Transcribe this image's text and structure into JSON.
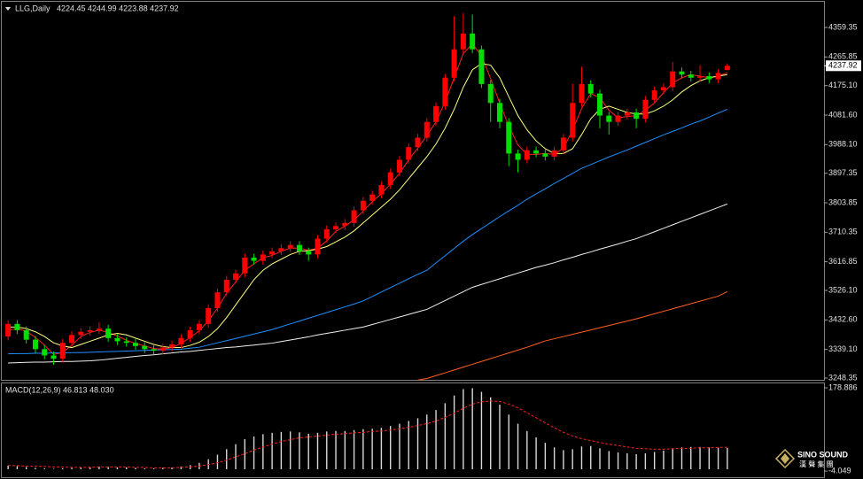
{
  "chart_data": [
    {
      "type": "candlestick",
      "title": "LLG,Daily",
      "header_values": "4224.45 4244.99 4223.88 4237.92",
      "current_price": 4237.92,
      "up_color": "#ff0000",
      "down_color": "#00e000",
      "ylim": [
        3239.93,
        4440.7
      ],
      "yticks": [
        4359.35,
        4265.85,
        {
          "value": 4175.1,
          "label": "4175.10"
        },
        {
          "value": 4081.6,
          "label": "4081.60"
        },
        {
          "value": 3988.1,
          "label": "3988.10"
        },
        3897.35,
        3803.85,
        3710.35,
        3616.85,
        {
          "value": 3526.1,
          "label": "3526.10"
        },
        {
          "value": 3432.6,
          "label": "3432.60"
        },
        {
          "value": 3339.1,
          "label": "3339.10"
        },
        3248.35
      ],
      "open": [
        3380,
        3420,
        3400,
        3370,
        3340,
        3320,
        3310,
        3360,
        3385,
        3395,
        3400,
        3405,
        3375,
        3365,
        3360,
        3350,
        3340,
        3335,
        3345,
        3355,
        3375,
        3400,
        3420,
        3470,
        3520,
        3560,
        3580,
        3630,
        3620,
        3640,
        3650,
        3660,
        3670,
        3650,
        3640,
        3690,
        3720,
        3730,
        3740,
        3780,
        3810,
        3830,
        3860,
        3900,
        3940,
        3980,
        4010,
        4060,
        4110,
        4200,
        4290,
        4340,
        4290,
        4180,
        4120,
        4060,
        3960,
        3940,
        3970,
        3960,
        3950,
        3970,
        4010,
        4120,
        4180,
        4150,
        4080,
        4060,
        4080,
        4090,
        4070,
        4130,
        4160,
        4170,
        4220,
        4210,
        4200,
        4205,
        4195,
        4224.45
      ],
      "high": [
        3432,
        3432,
        3412,
        3382,
        3352,
        3332,
        3372,
        3397,
        3407,
        3412,
        3425,
        3417,
        3387,
        3377,
        3372,
        3362,
        3352,
        3357,
        3367,
        3387,
        3412,
        3432,
        3482,
        3532,
        3572,
        3592,
        3642,
        3642,
        3652,
        3662,
        3672,
        3682,
        3682,
        3662,
        3702,
        3732,
        3742,
        3752,
        3792,
        3822,
        3842,
        3872,
        3912,
        3952,
        3992,
        4022,
        4072,
        4122,
        4212,
        4395,
        4405,
        4400,
        4302,
        4192,
        4132,
        4072,
        3972,
        3982,
        3982,
        3972,
        3982,
        4022,
        4180,
        4235,
        4192,
        4162,
        4092,
        4092,
        4102,
        4102,
        4142,
        4172,
        4182,
        4250,
        4232,
        4222,
        4240,
        4217,
        4227,
        4244.99
      ],
      "low": [
        3368,
        3388,
        3358,
        3328,
        3308,
        3290,
        3298,
        3348,
        3373,
        3383,
        3388,
        3363,
        3353,
        3348,
        3338,
        3328,
        3323,
        3323,
        3333,
        3343,
        3363,
        3388,
        3408,
        3458,
        3508,
        3548,
        3568,
        3608,
        3608,
        3628,
        3638,
        3648,
        3638,
        3620,
        3628,
        3678,
        3708,
        3718,
        3728,
        3768,
        3798,
        3818,
        3848,
        3888,
        3928,
        3968,
        3998,
        4048,
        4098,
        4188,
        4278,
        4278,
        4168,
        4060,
        4040,
        3920,
        3900,
        3928,
        3948,
        3938,
        3938,
        3958,
        3998,
        4108,
        4138,
        4040,
        4020,
        4048,
        4068,
        4040,
        4058,
        4118,
        4148,
        4158,
        4198,
        4188,
        4188,
        4183,
        4183,
        4223.88
      ],
      "close": [
        3420,
        3400,
        3370,
        3340,
        3320,
        3310,
        3360,
        3385,
        3395,
        3400,
        3405,
        3375,
        3365,
        3360,
        3350,
        3340,
        3335,
        3345,
        3355,
        3375,
        3400,
        3420,
        3470,
        3520,
        3560,
        3580,
        3630,
        3620,
        3640,
        3650,
        3660,
        3670,
        3650,
        3640,
        3690,
        3720,
        3730,
        3740,
        3780,
        3810,
        3830,
        3860,
        3900,
        3940,
        3980,
        4010,
        4060,
        4110,
        4200,
        4290,
        4340,
        4290,
        4180,
        4120,
        4060,
        3960,
        3940,
        3970,
        3960,
        3950,
        3970,
        4010,
        4120,
        4180,
        4150,
        4080,
        4060,
        4080,
        4090,
        4070,
        4130,
        4160,
        4170,
        4220,
        4210,
        4200,
        4205,
        4195,
        4215,
        4237.92
      ],
      "series": [
        {
          "color": "#ff2020",
          "values": [
            3400,
            3405,
            3397,
            3377,
            3353,
            3323,
            3330,
            3352,
            3380,
            3393,
            3400,
            3393,
            3382,
            3368,
            3358,
            3350,
            3342,
            3340,
            3345,
            3358,
            3377,
            3398,
            3430,
            3470,
            3517,
            3553,
            3590,
            3610,
            3630,
            3637,
            3650,
            3660,
            3660,
            3653,
            3660,
            3683,
            3713,
            3730,
            3750,
            3777,
            3807,
            3833,
            3863,
            3897,
            3940,
            3977,
            4017,
            4060,
            4123,
            4200,
            4277,
            4307,
            4270,
            4197,
            4120,
            4047,
            3987,
            3957,
            3957,
            3960,
            3957,
            3977,
            4033,
            4103,
            4150,
            4137,
            4097,
            4073,
            4077,
            4080,
            4097,
            4120,
            4153,
            4183,
            4200,
            4210,
            4205,
            4200,
            4205,
            4216
          ]
        },
        {
          "color": "#ffff80",
          "values": [
            3410,
            3410,
            3405,
            3395,
            3380,
            3360,
            3350,
            3345,
            3355,
            3365,
            3375,
            3385,
            3390,
            3385,
            3375,
            3365,
            3355,
            3348,
            3345,
            3345,
            3352,
            3362,
            3380,
            3405,
            3440,
            3480,
            3520,
            3560,
            3590,
            3610,
            3625,
            3640,
            3650,
            3652,
            3657,
            3665,
            3680,
            3695,
            3715,
            3740,
            3765,
            3790,
            3815,
            3845,
            3880,
            3915,
            3950,
            3990,
            4040,
            4100,
            4170,
            4225,
            4245,
            4240,
            4200,
            4140,
            4080,
            4035,
            4000,
            3975,
            3960,
            3960,
            3975,
            4020,
            4070,
            4100,
            4110,
            4100,
            4090,
            4085,
            4085,
            4095,
            4110,
            4130,
            4155,
            4175,
            4190,
            4200,
            4205,
            4210
          ]
        },
        {
          "color": "#1e90ff",
          "values": [
            3325,
            3326,
            3326,
            3327,
            3327,
            3328,
            3328,
            3329,
            3329,
            3330,
            3331,
            3332,
            3333,
            3334,
            3335,
            3336,
            3337,
            3338,
            3339,
            3340,
            3343,
            3346,
            3353,
            3360,
            3367,
            3374,
            3381,
            3388,
            3395,
            3402,
            3411,
            3420,
            3429,
            3438,
            3447,
            3456,
            3465,
            3474,
            3483,
            3493,
            3507,
            3521,
            3535,
            3549,
            3563,
            3577,
            3590,
            3613,
            3636,
            3659,
            3682,
            3703,
            3722,
            3741,
            3760,
            3778,
            3796,
            3815,
            3832,
            3848,
            3865,
            3881,
            3897,
            3913,
            3925,
            3937,
            3949,
            3960,
            3971,
            3983,
            3995,
            4007,
            4019,
            4030,
            4041,
            4053,
            4063,
            4075,
            4088,
            4100
          ]
        },
        {
          "color": "#f0f0f0",
          "values": [
            3296,
            3297,
            3298,
            3299,
            3299,
            3300,
            3301,
            3301,
            3302,
            3303,
            3305,
            3308,
            3311,
            3314,
            3317,
            3320,
            3322,
            3325,
            3328,
            3331,
            3333,
            3336,
            3339,
            3342,
            3345,
            3347,
            3350,
            3353,
            3356,
            3359,
            3364,
            3369,
            3374,
            3379,
            3385,
            3390,
            3395,
            3400,
            3405,
            3410,
            3418,
            3426,
            3434,
            3442,
            3450,
            3458,
            3466,
            3480,
            3494,
            3508,
            3522,
            3536,
            3545,
            3554,
            3563,
            3572,
            3581,
            3590,
            3599,
            3606,
            3614,
            3623,
            3631,
            3640,
            3648,
            3657,
            3665,
            3673,
            3682,
            3690,
            3701,
            3712,
            3723,
            3734,
            3745,
            3756,
            3767,
            3778,
            3789,
            3800
          ]
        },
        {
          "color": "#ff6020",
          "values": [
            null,
            null,
            null,
            null,
            null,
            null,
            null,
            null,
            null,
            null,
            null,
            null,
            null,
            null,
            null,
            null,
            null,
            null,
            null,
            null,
            null,
            null,
            null,
            null,
            null,
            null,
            null,
            null,
            null,
            null,
            null,
            null,
            null,
            null,
            null,
            null,
            null,
            null,
            null,
            null,
            null,
            null,
            null,
            null,
            null,
            3242,
            3247,
            3256,
            3265,
            3274,
            3283,
            3292,
            3301,
            3310,
            3319,
            3328,
            3337,
            3346,
            3356,
            3366,
            3373,
            3380,
            3387,
            3394,
            3401,
            3408,
            3415,
            3422,
            3429,
            3436,
            3444,
            3452,
            3460,
            3468,
            3476,
            3484,
            3492,
            3500,
            3508,
            3522
          ]
        }
      ]
    },
    {
      "type": "macd",
      "title": "MACD(12,26,9) 46.813 48.030",
      "ylim": [
        -19.5,
        188.6
      ],
      "yticks": [
        178.886,
        -4.049
      ],
      "series": [
        {
          "style": "histogram",
          "color": "#d8d8d8",
          "values": [
            8,
            7,
            5,
            3,
            2,
            1,
            2,
            3,
            4,
            5,
            6,
            5,
            4,
            4,
            3,
            2,
            2,
            3,
            4,
            6,
            9,
            14,
            22,
            32,
            44,
            55,
            66,
            72,
            77,
            80,
            82,
            83,
            81,
            78,
            80,
            83,
            84,
            84,
            86,
            88,
            89,
            91,
            95,
            100,
            106,
            112,
            120,
            130,
            145,
            162,
            176,
            178,
            170,
            158,
            142,
            120,
            100,
            84,
            70,
            58,
            48,
            42,
            44,
            50,
            51,
            46,
            40,
            37,
            35,
            33,
            35,
            38,
            41,
            46,
            48,
            49,
            49,
            48,
            47,
            46.813
          ]
        },
        {
          "style": "dashed",
          "color": "#ff2020",
          "values": [
            8,
            8,
            7,
            7,
            6,
            5,
            5,
            4,
            4,
            4,
            5,
            5,
            5,
            5,
            4,
            4,
            3,
            3,
            3,
            4,
            5,
            7,
            10,
            14,
            20,
            27,
            34,
            42,
            49,
            55,
            61,
            65,
            69,
            71,
            73,
            75,
            77,
            78,
            80,
            81,
            83,
            84,
            86,
            89,
            92,
            96,
            100,
            106,
            114,
            123,
            134,
            143,
            148,
            150,
            149,
            143,
            135,
            124,
            113,
            102,
            91,
            81,
            73,
            67,
            63,
            59,
            55,
            52,
            49,
            46,
            45,
            44,
            44,
            45,
            46,
            46,
            47,
            47,
            48,
            48.03
          ]
        }
      ]
    }
  ],
  "watermark": {
    "name": "SINO SOUND",
    "sub": "漢 聲 集 團"
  }
}
